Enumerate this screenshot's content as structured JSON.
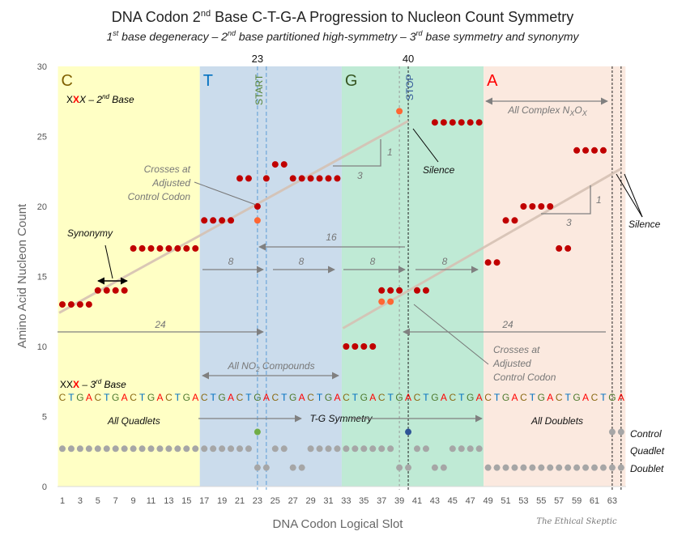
{
  "chart_data": {
    "type": "scatter",
    "title": "DNA Codon 2nd Base C-T-G-A Progression to Nucleon Count Symmetry",
    "title_parts": {
      "pre": "DNA Codon 2",
      "sup": "nd",
      "post": " Base C-T-G-A Progression to Nucleon Count Symmetry"
    },
    "subtitle_parts": [
      "1",
      "st",
      " base degeneracy – 2",
      "nd",
      " base partitioned high-symmetry – 3",
      "rd",
      " base symmetry and synonymy"
    ],
    "xlabel": "DNA Codon Logical Slot",
    "ylabel": "Amino Acid Nucleon Count",
    "xlim": [
      1,
      64
    ],
    "ylim": [
      0,
      30
    ],
    "x_ticks": [
      1,
      3,
      5,
      7,
      9,
      11,
      13,
      15,
      17,
      19,
      21,
      23,
      25,
      27,
      29,
      31,
      33,
      35,
      37,
      39,
      41,
      43,
      45,
      47,
      49,
      51,
      53,
      55,
      57,
      59,
      61,
      63
    ],
    "y_ticks": [
      0,
      5,
      10,
      15,
      20,
      25,
      30
    ],
    "grid": false,
    "regions": [
      {
        "label": "C",
        "from": 1,
        "to": 16,
        "color": "#FFFFC5",
        "label_color": "#7F6000"
      },
      {
        "label": "T",
        "from": 17,
        "to": 32,
        "color": "#CBDCEC",
        "label_color": "#0070C0"
      },
      {
        "label": "G",
        "from": 33,
        "to": 48,
        "color": "#BFEAD5",
        "label_color": "#375623"
      },
      {
        "label": "A",
        "from": 49,
        "to": 64,
        "color": "#FBE9DF",
        "label_color": "#FF0000"
      }
    ],
    "series": [
      {
        "color": "#C00000",
        "points": [
          [
            1,
            13
          ],
          [
            2,
            13
          ],
          [
            3,
            13
          ],
          [
            4,
            13
          ],
          [
            5,
            14
          ],
          [
            6,
            14
          ],
          [
            7,
            14
          ],
          [
            8,
            14
          ],
          [
            9,
            17
          ],
          [
            10,
            17
          ],
          [
            11,
            17
          ],
          [
            12,
            17
          ],
          [
            13,
            17
          ],
          [
            14,
            17
          ],
          [
            15,
            17
          ],
          [
            16,
            17
          ],
          [
            17,
            19
          ],
          [
            18,
            19
          ],
          [
            19,
            19
          ],
          [
            20,
            19
          ],
          [
            21,
            22
          ],
          [
            22,
            22
          ],
          [
            23,
            20
          ],
          [
            24,
            22
          ],
          [
            25,
            23
          ],
          [
            26,
            23
          ],
          [
            27,
            22
          ],
          [
            28,
            22
          ],
          [
            29,
            22
          ],
          [
            30,
            22
          ],
          [
            31,
            22
          ],
          [
            32,
            22
          ],
          [
            33,
            10
          ],
          [
            34,
            10
          ],
          [
            35,
            10
          ],
          [
            36,
            10
          ],
          [
            37,
            14
          ],
          [
            38,
            14
          ],
          [
            39,
            14
          ],
          [
            41,
            14
          ],
          [
            42,
            14
          ],
          [
            43,
            26
          ],
          [
            44,
            26
          ],
          [
            45,
            26
          ],
          [
            46,
            26
          ],
          [
            47,
            26
          ],
          [
            48,
            26
          ],
          [
            49,
            16
          ],
          [
            50,
            16
          ],
          [
            51,
            19
          ],
          [
            52,
            19
          ],
          [
            53,
            20
          ],
          [
            54,
            20
          ],
          [
            55,
            20
          ],
          [
            56,
            20
          ],
          [
            57,
            17
          ],
          [
            58,
            17
          ],
          [
            59,
            24
          ],
          [
            60,
            24
          ],
          [
            61,
            24
          ],
          [
            62,
            24
          ]
        ]
      },
      {
        "color": "#FF6633",
        "points": [
          [
            23,
            19
          ],
          [
            37,
            13.2
          ],
          [
            38,
            13.2
          ],
          [
            39,
            26.8
          ]
        ]
      }
    ],
    "codon_rows": {
      "control": [
        {
          "slot": 23,
          "color": "#70AD47"
        },
        {
          "slot": 40,
          "color": "#2F5597"
        },
        {
          "slot": 63,
          "color": "#A6A6A6"
        },
        {
          "slot": 64,
          "color": "#A6A6A6"
        }
      ],
      "quadlet": [
        1,
        2,
        3,
        4,
        5,
        6,
        7,
        8,
        9,
        10,
        11,
        12,
        13,
        14,
        15,
        16,
        17,
        18,
        19,
        20,
        21,
        22,
        25,
        26,
        29,
        30,
        31,
        32,
        33,
        34,
        35,
        36,
        37,
        38,
        41,
        42,
        45,
        46,
        47,
        48
      ],
      "doublet": [
        23,
        24,
        27,
        28,
        39,
        40,
        43,
        44,
        49,
        50,
        51,
        52,
        53,
        54,
        55,
        56,
        57,
        58,
        59,
        60,
        61,
        62,
        63,
        64
      ],
      "row_values": {
        "control": 3.9,
        "quadlet": 2.7,
        "doublet": 1.35
      }
    },
    "trendlines": [
      {
        "from": [
          1,
          12.4
        ],
        "to": [
          40,
          26.1
        ]
      },
      {
        "from": [
          33,
          11.3
        ],
        "to": [
          64,
          22.7
        ]
      }
    ],
    "marker_lines": [
      {
        "slot": 23,
        "style": "blue-dashed",
        "label": "START",
        "top_label": "23"
      },
      {
        "slot": 24,
        "style": "blue-dashed"
      },
      {
        "slot": 39,
        "style": "gray-dashed"
      },
      {
        "slot": 40,
        "style": "black-dashed",
        "label": "STOP",
        "top_label": "40"
      },
      {
        "slot": 63,
        "style": "black-dashed"
      },
      {
        "slot": 64,
        "style": "black-dashed"
      }
    ],
    "base_sequence": "CTGACTGACTGACTGACTGACTGACTGACTGACTGACTGACTGACTGACTGACTGACTGACTGA",
    "base_colors": {
      "C": "#8B6A14",
      "T": "#0070C0",
      "G": "#4E7A2E",
      "A": "#FF0000"
    },
    "annotations": {
      "second_base": {
        "pre": "X",
        "mark": "X",
        "post": "X – 2",
        "sup": "nd",
        "tail": " Base"
      },
      "third_base": {
        "pre": "XX",
        "mark": "X",
        "post": " – 3",
        "sup": "rd",
        "tail": " Base"
      },
      "synonymy": "Synonymy",
      "crosses_left": [
        "Crosses at",
        "Adjusted",
        "Control Codon"
      ],
      "crosses_right": [
        "Crosses at",
        "Adjusted",
        "Control Codon"
      ],
      "silence": "Silence",
      "silence2": "Silence",
      "span_16": "16",
      "span_8": [
        "8",
        "8",
        "8",
        "8"
      ],
      "span_24_left": "24",
      "span_24_right": "24",
      "slope_1a": "1",
      "slope_3a": "3",
      "slope_1b": "1",
      "slope_3b": "3",
      "all_no2": {
        "pre": "All NO",
        "sub": "2",
        "post": " Compounds"
      },
      "all_complex": {
        "pre": "All Complex N",
        "sub1": "X",
        "mid": "O",
        "sub2": "X"
      },
      "all_quadlets": "All Quadlets",
      "all_doublets": "All Doublets",
      "tg_symmetry": "T-G Symmetry",
      "row_control": "Control",
      "row_quadlet": "Quadlet",
      "row_doublet": "Doublet"
    },
    "watermark": "The Ethical Skeptic"
  }
}
